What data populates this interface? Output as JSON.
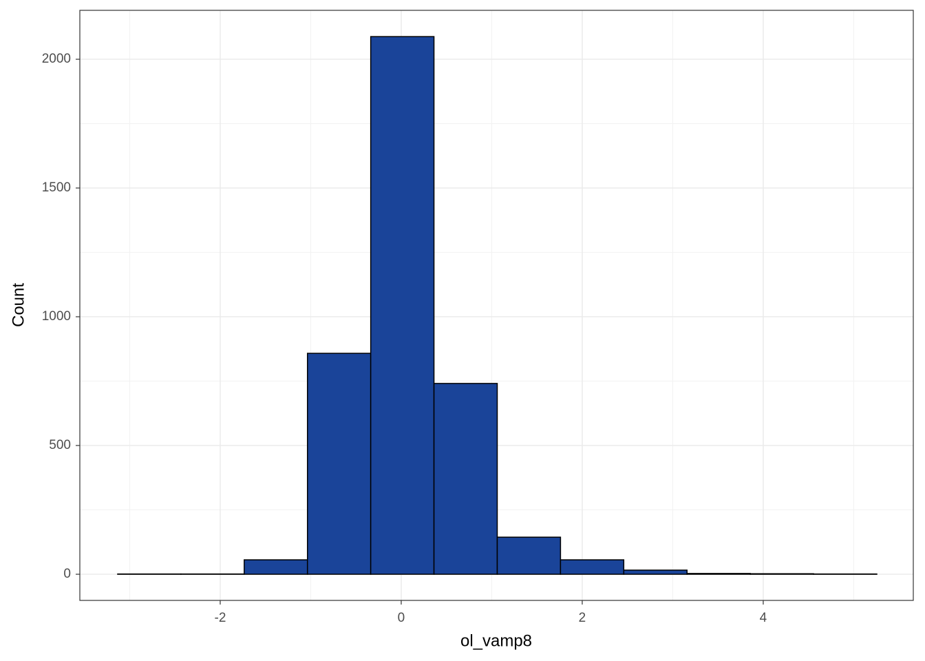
{
  "chart_data": {
    "type": "histogram",
    "x_label": "ol_vamp8",
    "y_label": "Count",
    "bins": [
      -3.133,
      -2.434,
      -1.735,
      -1.036,
      -0.337,
      0.362,
      1.061,
      1.76,
      2.459,
      3.158,
      3.857,
      4.556,
      5.255
    ],
    "values": [
      1,
      1,
      56,
      858,
      2088,
      741,
      144,
      56,
      16,
      3,
      2,
      1
    ],
    "color": "#1a4499",
    "edge_color": "#000000",
    "xlim": [
      -3.551,
      5.658
    ],
    "ylim": [
      -101.6,
      2190
    ],
    "xticks": [
      -2,
      0,
      2,
      4
    ],
    "yticks": [
      0,
      500,
      1000,
      1500,
      2000
    ],
    "minor_xticks": [
      -3,
      -1,
      1,
      3,
      5
    ],
    "minor_yticks": [
      250,
      750,
      1250,
      1750
    ],
    "grid": true
  }
}
